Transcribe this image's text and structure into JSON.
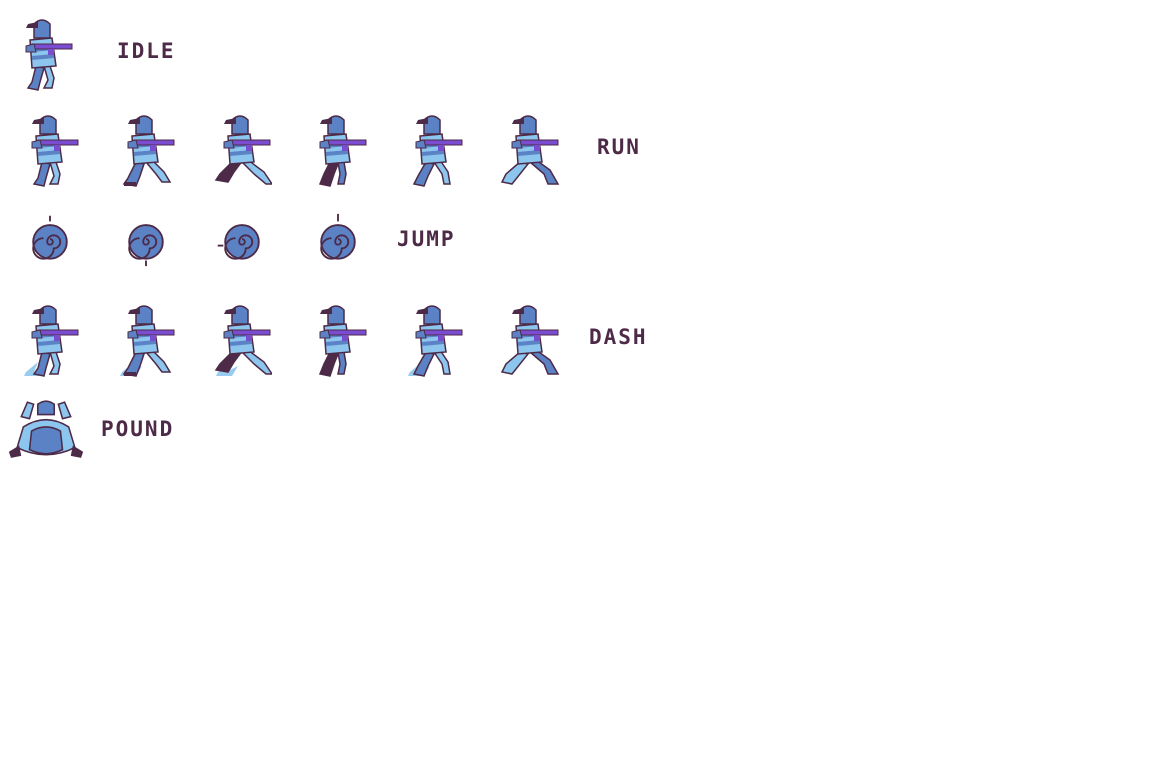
{
  "palette": {
    "dark": "#4d2a47",
    "body": "#5b82c4",
    "light": "#8cc5ee",
    "weapon": "#7a4cd0",
    "background": "#ffffff"
  },
  "rows": [
    {
      "id": "idle",
      "label": "IDLE",
      "frames": 1,
      "sprite": "soldier-icon"
    },
    {
      "id": "run",
      "label": "RUN",
      "frames": 6,
      "sprite": "soldier-icon"
    },
    {
      "id": "jump",
      "label": "JUMP",
      "frames": 4,
      "sprite": "spin-ball-icon"
    },
    {
      "id": "dash",
      "label": "DASH",
      "frames": 6,
      "sprite": "soldier-icon"
    },
    {
      "id": "pound",
      "label": "POUND",
      "frames": 1,
      "sprite": "ground-pound-icon"
    }
  ]
}
